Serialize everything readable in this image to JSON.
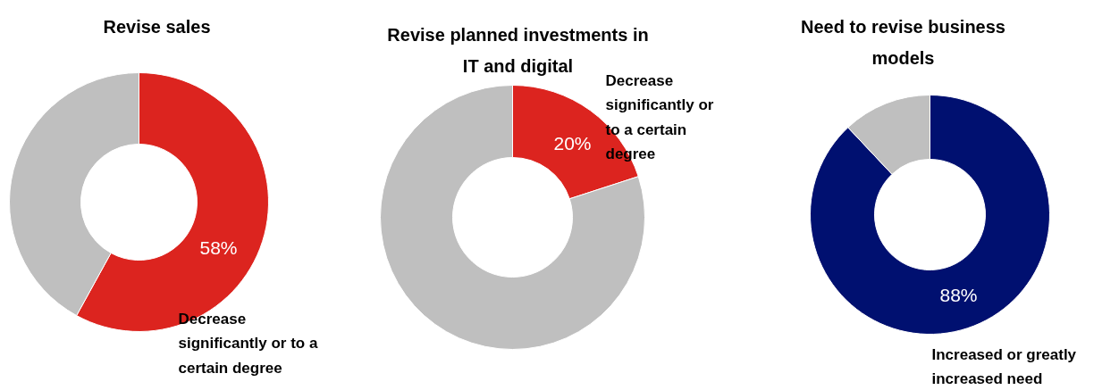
{
  "chart_data": [
    {
      "type": "donut",
      "title": "Revise sales",
      "categories": [
        "Decrease significantly or to a certain degree",
        null
      ],
      "values": [
        58,
        42
      ],
      "colors": [
        "#dc241f",
        "#bfbfbf"
      ],
      "value_labels": [
        "58%",
        null
      ]
    },
    {
      "type": "donut",
      "title": "Revise planned investments in IT and digital",
      "categories": [
        "Decrease significantly or to a certain degree",
        null
      ],
      "values": [
        20,
        80
      ],
      "colors": [
        "#dc241f",
        "#bfbfbf"
      ],
      "value_labels": [
        "20%",
        null
      ]
    },
    {
      "type": "donut",
      "title": "Need to revise business models",
      "categories": [
        "Increased or greatly increased need",
        null
      ],
      "values": [
        88,
        12
      ],
      "colors": [
        "#001070",
        "#bfbfbf"
      ],
      "value_labels": [
        "88%",
        null
      ]
    }
  ]
}
